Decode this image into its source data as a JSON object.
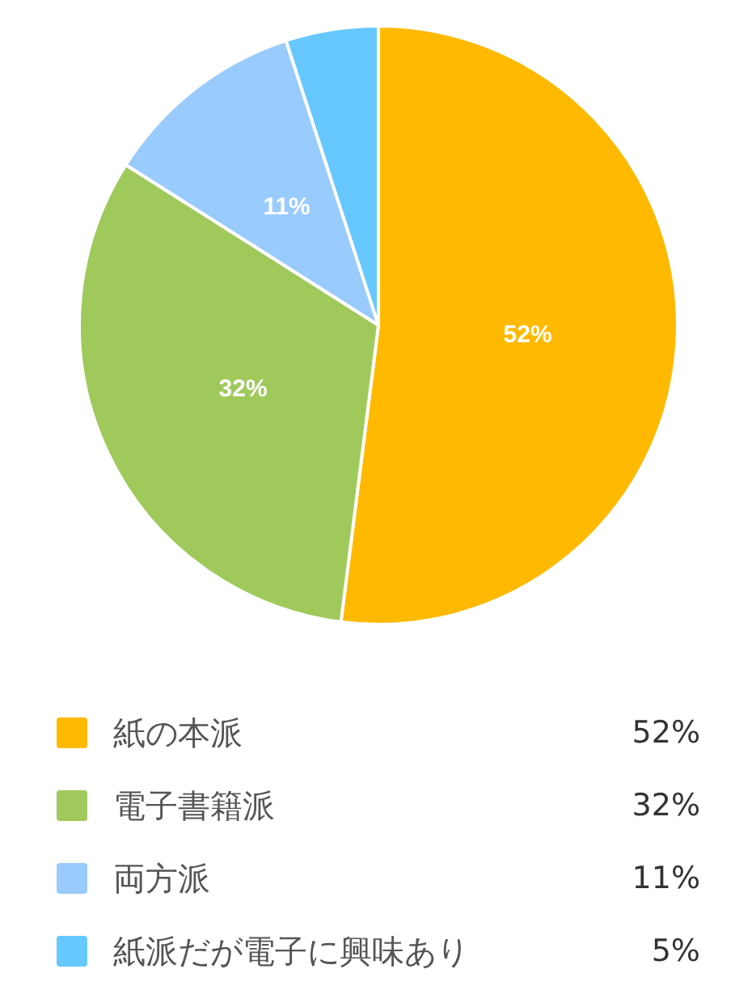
{
  "chart_data": {
    "type": "pie",
    "categories": [
      "紙の本派",
      "電子書籍派",
      "両方派",
      "紙派だが電子に興味あり"
    ],
    "values": [
      52,
      32,
      11,
      5
    ],
    "colors": [
      "#ffb900",
      "#a0c95c",
      "#99cbfd",
      "#66c8fe"
    ],
    "value_labels": [
      "52%",
      "32%",
      "11%",
      "5%"
    ],
    "legend": "bottom"
  }
}
